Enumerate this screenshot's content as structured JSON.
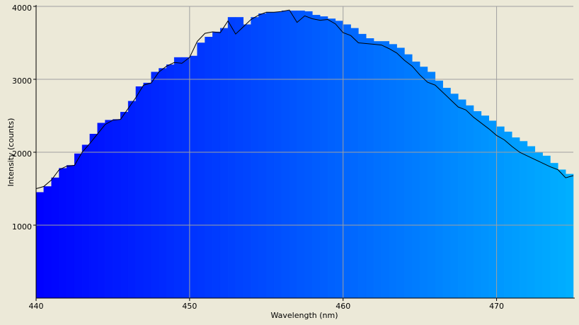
{
  "chart_data": {
    "type": "histogram",
    "x_label": "Wavelength (nm)",
    "y_label": "Intensity (counts)",
    "xlim": [
      440,
      475
    ],
    "ylim": [
      0,
      4000
    ],
    "xticks": [
      440,
      450,
      460,
      470
    ],
    "yticks": [
      1000,
      2000,
      3000,
      4000
    ],
    "grid": true,
    "color_start": "#0000ff",
    "color_end": "#00b0ff",
    "bins": [
      440,
      440.5,
      441,
      441.5,
      442,
      442.5,
      443,
      443.5,
      444,
      444.5,
      445,
      445.5,
      446,
      446.5,
      447,
      447.5,
      448,
      448.5,
      449,
      449.5,
      450,
      450.5,
      451,
      451.5,
      452,
      452.5,
      453,
      453.5,
      454,
      454.5,
      455,
      455.5,
      456,
      456.5,
      457,
      457.5,
      458,
      458.5,
      459,
      459.5,
      460,
      460.5,
      461,
      461.5,
      462,
      462.5,
      463,
      463.5,
      464,
      464.5,
      465,
      465.5,
      466,
      466.5,
      467,
      467.5,
      468,
      468.5,
      469,
      469.5,
      470,
      470.5,
      471,
      471.5,
      472,
      472.5,
      473,
      473.5,
      474,
      474.5,
      475
    ],
    "values": [
      1450,
      1530,
      1650,
      1780,
      1820,
      1980,
      2100,
      2250,
      2400,
      2440,
      2450,
      2550,
      2700,
      2900,
      2950,
      3100,
      3150,
      3200,
      3300,
      3300,
      3320,
      3500,
      3580,
      3650,
      3700,
      3850,
      3850,
      3750,
      3850,
      3900,
      3920,
      3920,
      3940,
      3940,
      3940,
      3930,
      3880,
      3860,
      3830,
      3800,
      3750,
      3700,
      3620,
      3560,
      3520,
      3520,
      3480,
      3430,
      3340,
      3240,
      3170,
      3100,
      2980,
      2880,
      2800,
      2720,
      2640,
      2560,
      2500,
      2430,
      2350,
      2280,
      2200,
      2150,
      2080,
      2000,
      1950,
      1850,
      1760,
      1700
    ],
    "line": {
      "color": "#000000",
      "x": [
        440,
        440.5,
        441,
        441.5,
        442,
        442.5,
        443,
        443.5,
        444,
        444.5,
        445,
        445.5,
        446,
        446.5,
        447,
        447.5,
        448,
        448.5,
        449,
        449.5,
        450,
        450.5,
        451,
        451.5,
        452,
        452.5,
        453,
        453.5,
        454,
        454.5,
        455,
        455.5,
        456,
        456.5,
        457,
        457.5,
        458,
        458.5,
        459,
        459.5,
        460,
        460.5,
        461,
        461.5,
        462,
        462.5,
        463,
        463.5,
        464,
        464.5,
        465,
        465.5,
        466,
        466.5,
        467,
        467.5,
        468,
        468.5,
        469,
        469.5,
        470,
        470.5,
        471,
        471.5,
        472,
        472.5,
        473,
        473.5,
        474,
        474.5,
        475
      ],
      "values": [
        1500,
        1530,
        1620,
        1760,
        1810,
        1820,
        2000,
        2120,
        2250,
        2380,
        2440,
        2450,
        2600,
        2750,
        2920,
        2950,
        3100,
        3180,
        3230,
        3220,
        3300,
        3520,
        3630,
        3650,
        3640,
        3800,
        3620,
        3720,
        3820,
        3880,
        3920,
        3920,
        3930,
        3950,
        3780,
        3870,
        3830,
        3810,
        3820,
        3760,
        3640,
        3600,
        3500,
        3490,
        3480,
        3470,
        3420,
        3360,
        3260,
        3180,
        3060,
        2960,
        2920,
        2820,
        2720,
        2620,
        2580,
        2480,
        2400,
        2320,
        2230,
        2170,
        2080,
        2000,
        1950,
        1900,
        1850,
        1800,
        1760,
        1650,
        1680
      ]
    }
  }
}
